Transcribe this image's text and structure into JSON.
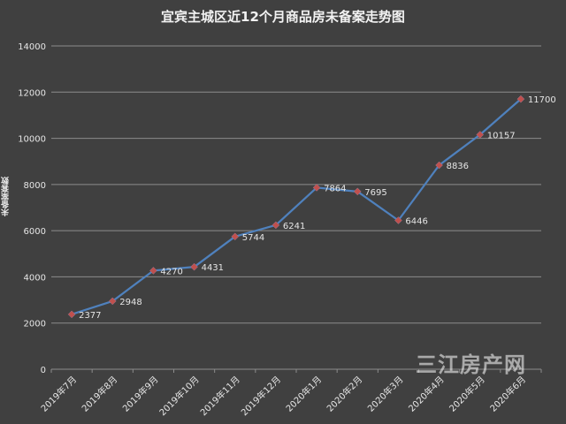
{
  "chart_data": {
    "type": "line",
    "title": "宜宾主城区近12个月商品房未备案走势图",
    "ylabel": "未备案套数",
    "xlabel": "",
    "categories": [
      "2019年7月",
      "2019年8月",
      "2019年9月",
      "2019年10月",
      "2019年11月",
      "2019年12月",
      "2020年1月",
      "2020年2月",
      "2020年3月",
      "2020年4月",
      "2020年5月",
      "2020年6月"
    ],
    "series": [
      {
        "values": [
          2377,
          2948,
          4270,
          4431,
          5744,
          6241,
          7864,
          7695,
          6446,
          8836,
          10157,
          11700
        ]
      }
    ],
    "ylim": [
      0,
      14000
    ],
    "yticks": [
      0,
      2000,
      4000,
      6000,
      8000,
      10000,
      12000,
      14000
    ],
    "grid": true,
    "legend": "none",
    "data_labels": true
  },
  "colors": {
    "background": "#404040",
    "line": "#4f81bd",
    "marker": "#c0504d",
    "grid": "#8c8c8c",
    "text": "#e6e6e6"
  },
  "watermark": "三江房产网"
}
